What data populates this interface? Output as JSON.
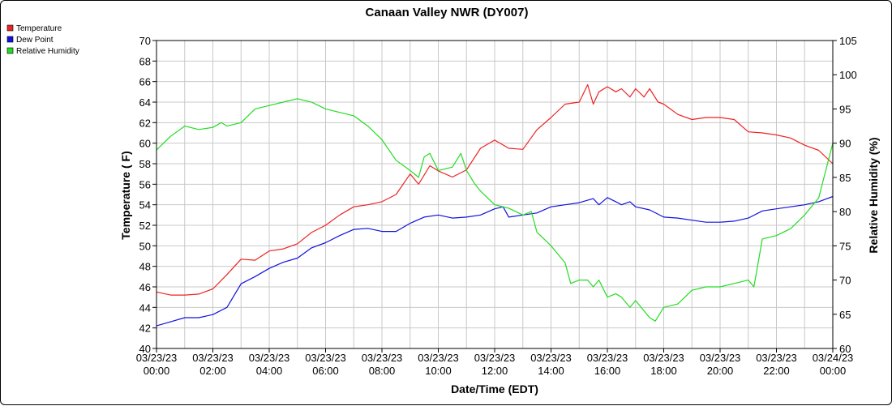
{
  "chart_data": {
    "type": "line",
    "title": "Canaan Valley NWR (DY007)",
    "xlabel": "Date/Time (EDT)",
    "ylabel_left": "Temperature ( F)",
    "ylabel_right": "Relative Humidity (%)",
    "ylim_left": [
      40,
      70
    ],
    "ylim_right": [
      60,
      105
    ],
    "yticks_left": [
      "40",
      "42",
      "44",
      "46",
      "48",
      "50",
      "52",
      "54",
      "56",
      "58",
      "60",
      "62",
      "64",
      "66",
      "68",
      "70"
    ],
    "yticks_right": [
      "60",
      "65",
      "70",
      "75",
      "80",
      "85",
      "90",
      "95",
      "100",
      "105"
    ],
    "xticks": [
      {
        "date": "03/23/23",
        "time": "00:00"
      },
      {
        "date": "03/23/23",
        "time": "02:00"
      },
      {
        "date": "03/23/23",
        "time": "04:00"
      },
      {
        "date": "03/23/23",
        "time": "06:00"
      },
      {
        "date": "03/23/23",
        "time": "08:00"
      },
      {
        "date": "03/23/23",
        "time": "10:00"
      },
      {
        "date": "03/23/23",
        "time": "12:00"
      },
      {
        "date": "03/23/23",
        "time": "14:00"
      },
      {
        "date": "03/23/23",
        "time": "16:00"
      },
      {
        "date": "03/23/23",
        "time": "18:00"
      },
      {
        "date": "03/23/23",
        "time": "20:00"
      },
      {
        "date": "03/23/23",
        "time": "22:00"
      },
      {
        "date": "03/24/23",
        "time": "00:00"
      }
    ],
    "grid": true,
    "legend_position": "top-left",
    "series": [
      {
        "name": "Temperature",
        "color": "#ee2222",
        "axis": "left",
        "x_hours": [
          0,
          0.5,
          1,
          1.5,
          2,
          2.5,
          3,
          3.5,
          4,
          4.5,
          5,
          5.5,
          6,
          6.5,
          7,
          7.5,
          8,
          8.5,
          9,
          9.3,
          9.7,
          10,
          10.5,
          11,
          11.5,
          12,
          12.5,
          13,
          13.5,
          14,
          14.5,
          15,
          15.3,
          15.5,
          15.7,
          16,
          16.3,
          16.5,
          16.8,
          17,
          17.3,
          17.5,
          17.8,
          18,
          18.5,
          19,
          19.5,
          20,
          20.5,
          21,
          21.5,
          22,
          22.5,
          23,
          23.5,
          24
        ],
        "values": [
          45.5,
          45.2,
          45.2,
          45.3,
          45.8,
          47.2,
          48.7,
          48.6,
          49.5,
          49.7,
          50.2,
          51.3,
          52.0,
          53.0,
          53.8,
          54.0,
          54.3,
          55.0,
          57.0,
          56.0,
          57.8,
          57.3,
          56.7,
          57.4,
          59.5,
          60.3,
          59.5,
          59.4,
          61.3,
          62.5,
          63.8,
          64.0,
          65.7,
          63.8,
          65.0,
          65.5,
          65.0,
          65.3,
          64.5,
          65.3,
          64.5,
          65.3,
          64.0,
          63.8,
          62.8,
          62.3,
          62.5,
          62.5,
          62.3,
          61.1,
          61.0,
          60.8,
          60.5,
          59.8,
          59.3,
          58.0
        ]
      },
      {
        "name": "Dew Point",
        "color": "#1111dd",
        "axis": "left",
        "x_hours": [
          0,
          0.5,
          1,
          1.5,
          2,
          2.5,
          3,
          3.5,
          4,
          4.5,
          5,
          5.5,
          6,
          6.5,
          7,
          7.5,
          8,
          8.5,
          9,
          9.5,
          10,
          10.5,
          11,
          11.5,
          12,
          12.3,
          12.5,
          13,
          13.5,
          14,
          14.5,
          15,
          15.5,
          15.7,
          16,
          16.3,
          16.5,
          16.8,
          17,
          17.5,
          18,
          18.5,
          19,
          19.5,
          20,
          20.5,
          21,
          21.5,
          22,
          22.5,
          23,
          23.5,
          24
        ],
        "values": [
          42.2,
          42.6,
          43.0,
          43.0,
          43.3,
          44.0,
          46.3,
          47.0,
          47.8,
          48.4,
          48.8,
          49.8,
          50.3,
          51.0,
          51.6,
          51.7,
          51.4,
          51.4,
          52.2,
          52.8,
          53.0,
          52.7,
          52.8,
          53.0,
          53.6,
          53.8,
          52.8,
          53.0,
          53.2,
          53.8,
          54.0,
          54.2,
          54.6,
          54.0,
          54.7,
          54.3,
          54.0,
          54.3,
          53.8,
          53.5,
          52.8,
          52.7,
          52.5,
          52.3,
          52.3,
          52.4,
          52.7,
          53.4,
          53.6,
          53.8,
          54.0,
          54.3,
          54.8
        ]
      },
      {
        "name": "Relative Humidity",
        "color": "#22dd22",
        "axis": "right",
        "x_hours": [
          0,
          0.5,
          1,
          1.5,
          2,
          2.3,
          2.5,
          3,
          3.5,
          4,
          4.5,
          5,
          5.5,
          6,
          6.5,
          7,
          7.5,
          8,
          8.5,
          9,
          9.3,
          9.5,
          9.7,
          10,
          10.5,
          10.8,
          11,
          11.3,
          11.5,
          12,
          12.5,
          13,
          13.3,
          13.5,
          14,
          14.5,
          14.7,
          15,
          15.3,
          15.5,
          15.7,
          16,
          16.3,
          16.5,
          16.8,
          17,
          17.3,
          17.5,
          17.7,
          18,
          18.5,
          19,
          19.5,
          20,
          20.5,
          21,
          21.2,
          21.5,
          22,
          22.5,
          23,
          23.5,
          24
        ],
        "values": [
          89,
          91,
          92.5,
          92,
          92.3,
          93,
          92.5,
          93,
          95,
          95.5,
          96,
          96.5,
          96,
          95,
          94.5,
          94,
          92.5,
          90.5,
          87.5,
          86,
          85,
          88,
          88.5,
          86,
          86.5,
          88.5,
          86,
          84,
          83,
          81,
          80.5,
          79.5,
          80,
          77,
          75,
          72.5,
          69.5,
          70,
          70,
          69,
          70,
          67.5,
          68,
          67.5,
          66,
          67,
          65.5,
          64.5,
          64,
          66,
          66.5,
          68.5,
          69,
          69,
          69.5,
          70,
          69,
          76,
          76.5,
          77.5,
          79.5,
          82,
          90
        ]
      }
    ]
  }
}
